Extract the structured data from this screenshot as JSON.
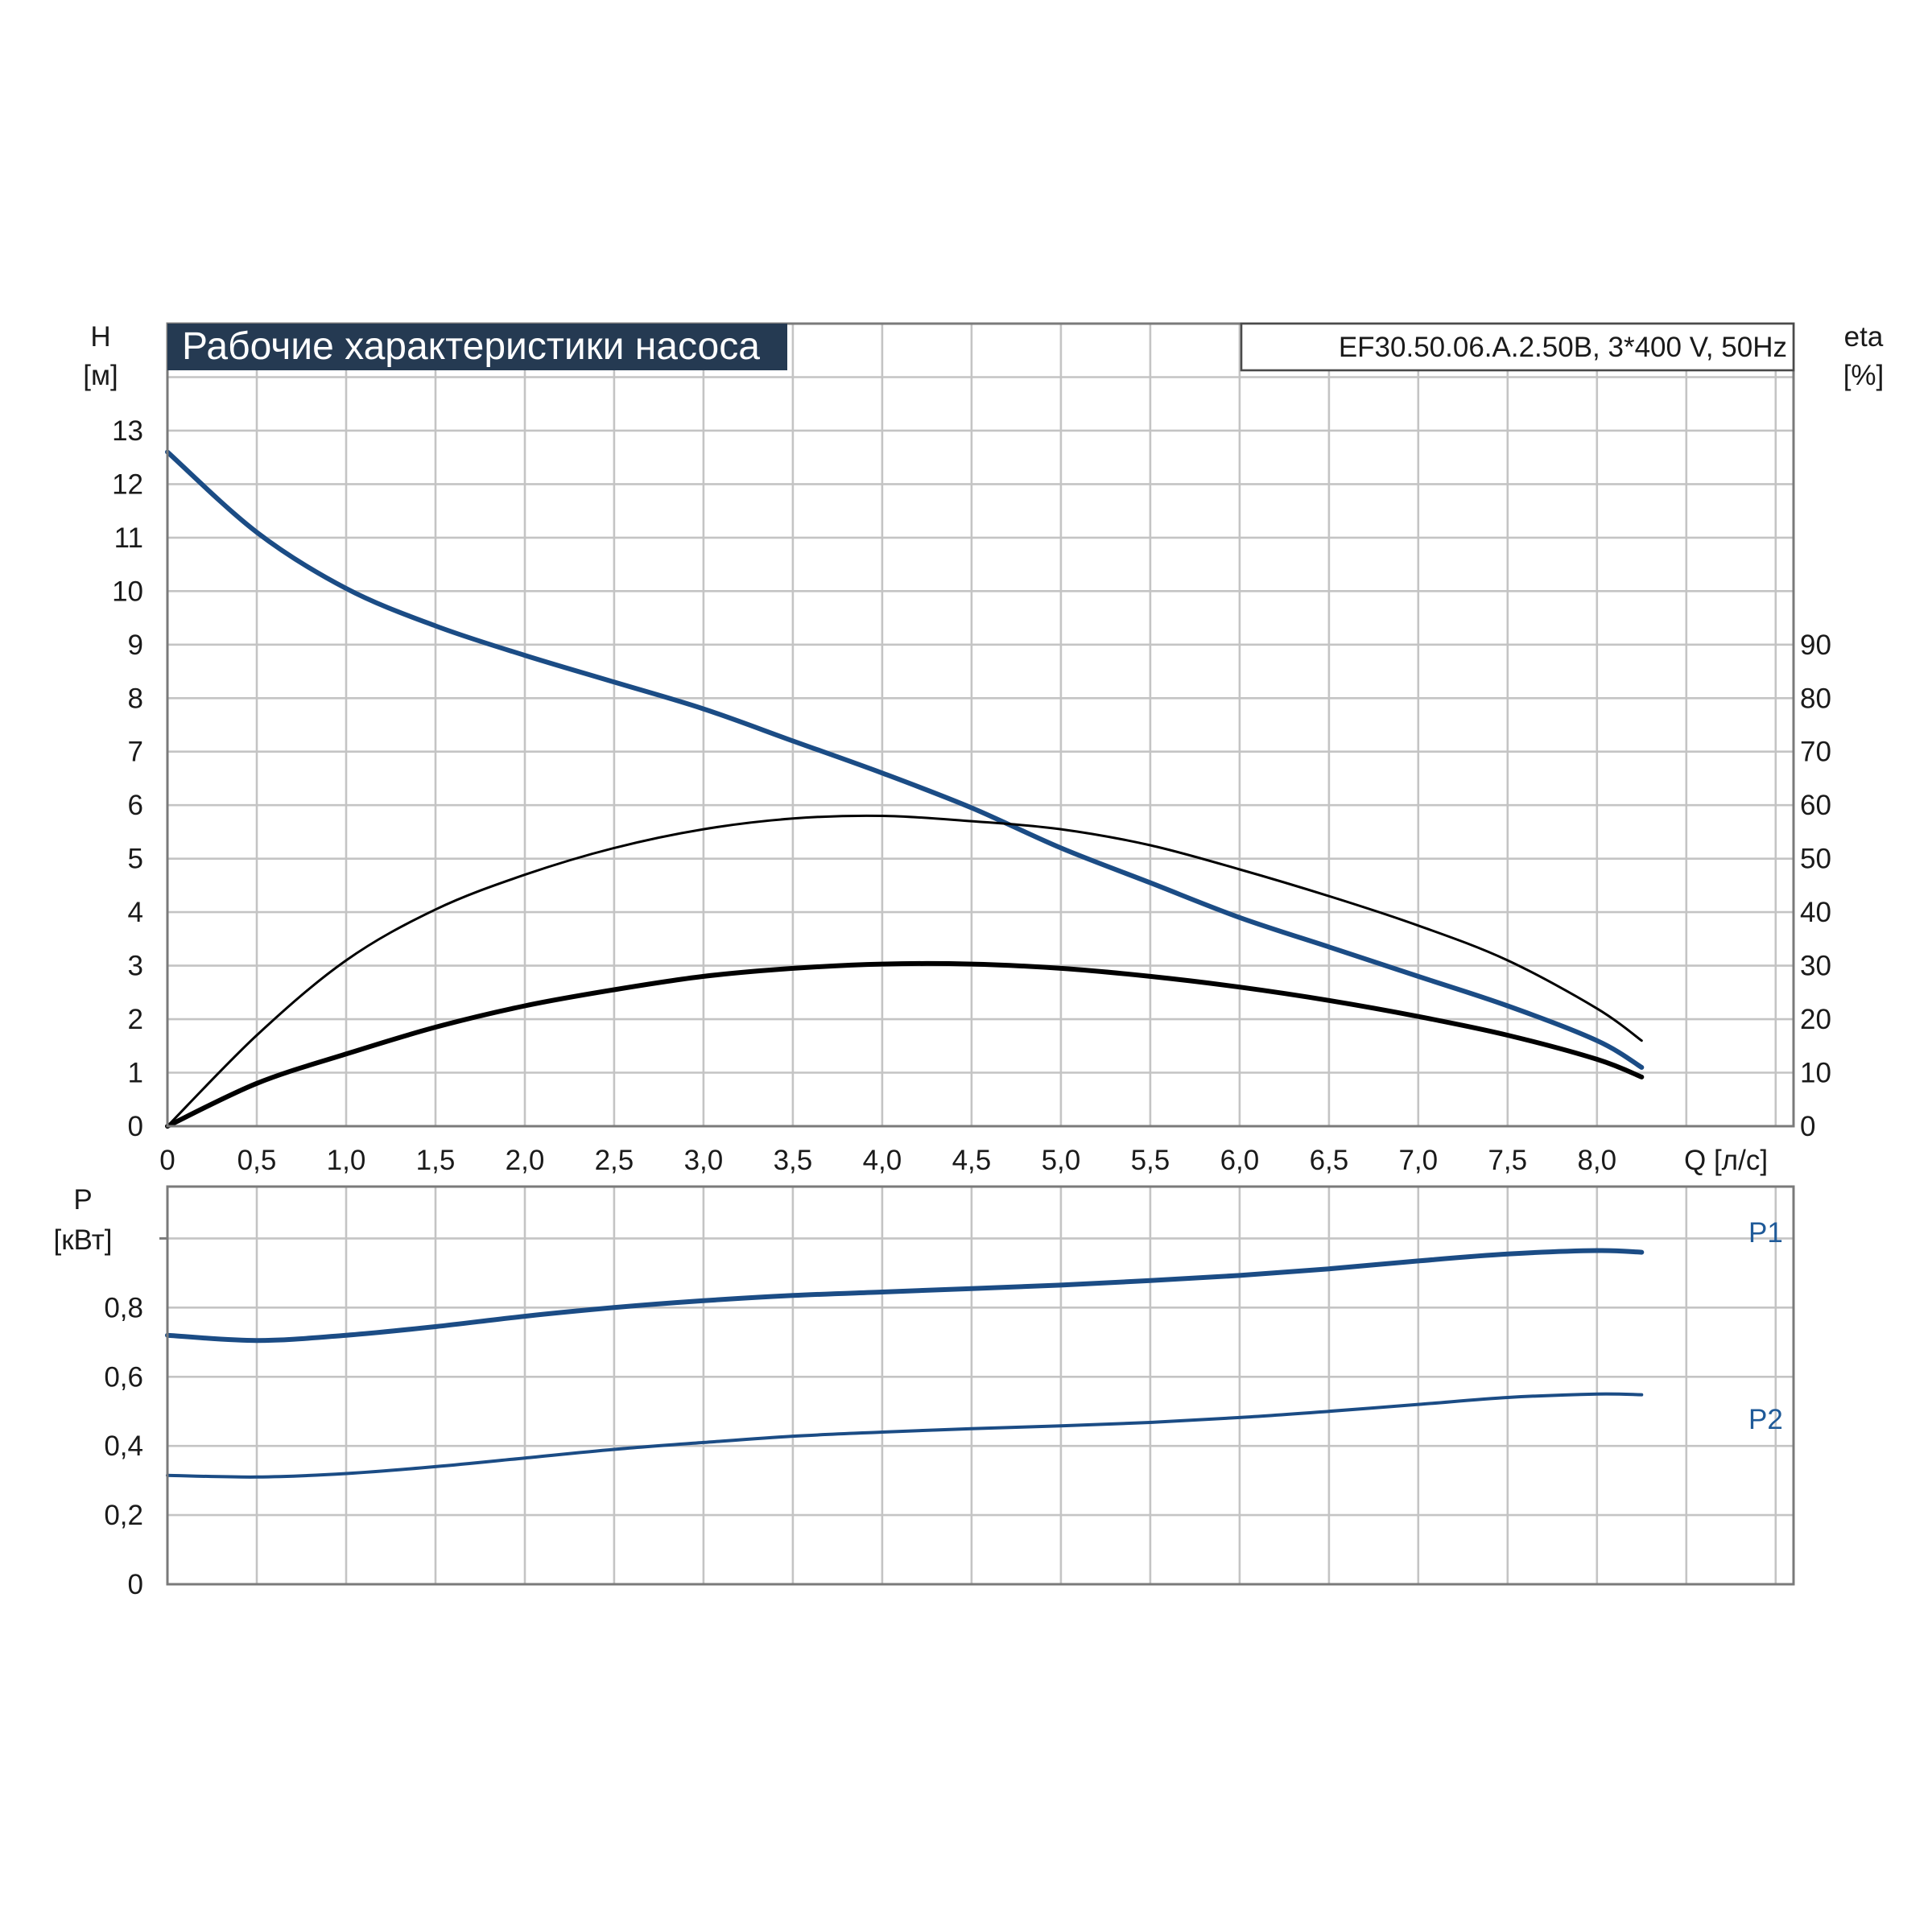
{
  "colors": {
    "blue": "#1b4c85",
    "black": "#000000",
    "title_bg": "#253a52",
    "series_label": "#1f5a98"
  },
  "header": {
    "title": "Рабочие характеристики насоса",
    "model": "EF30.50.06.A.2.50B, 3*400 V, 50Hz"
  },
  "axes": {
    "h_label": "H",
    "h_unit": "[м]",
    "eta_label": "eta",
    "eta_unit": "[%]",
    "q_label": "Q [л/с]",
    "p_label": "P",
    "p_unit": "[кВт]"
  },
  "chart_data": [
    {
      "type": "line",
      "title": "Рабочие характеристики насоса",
      "xlabel": "Q [л/с]",
      "ylabel": "H [м]",
      "y2label": "eta [%]",
      "xlim": [
        0,
        9.1
      ],
      "ylim": [
        0,
        15
      ],
      "y2lim": [
        0,
        150
      ],
      "grid": true,
      "x_ticks": [
        "0",
        "0,5",
        "1,0",
        "1,5",
        "2,0",
        "2,5",
        "3,0",
        "3,5",
        "4,0",
        "4,5",
        "5,0",
        "5,5",
        "6,0",
        "6,5",
        "7,0",
        "7,5",
        "8,0"
      ],
      "y_ticks": [
        "0",
        "1",
        "2",
        "3",
        "4",
        "5",
        "6",
        "7",
        "8",
        "9",
        "10",
        "11",
        "12",
        "13"
      ],
      "y2_ticks": [
        "0",
        "10",
        "20",
        "30",
        "40",
        "50",
        "60",
        "70",
        "80",
        "90"
      ],
      "series": [
        {
          "axis": "left",
          "color": "#1b4c85",
          "width": 6,
          "x": [
            0,
            0.5,
            1.0,
            1.5,
            2.0,
            2.5,
            3.0,
            3.5,
            4.0,
            4.5,
            5.0,
            5.5,
            6.0,
            6.5,
            7.0,
            7.5,
            8.0,
            8.25
          ],
          "y": [
            12.6,
            11.1,
            10.05,
            9.35,
            8.8,
            8.3,
            7.8,
            7.2,
            6.6,
            5.95,
            5.2,
            4.55,
            3.9,
            3.35,
            2.8,
            2.25,
            1.6,
            1.1
          ]
        },
        {
          "axis": "right",
          "color": "#000000",
          "width": 3,
          "x": [
            0,
            0.5,
            1.0,
            1.5,
            2.0,
            2.5,
            3.0,
            3.5,
            4.0,
            4.5,
            5.0,
            5.5,
            6.0,
            6.5,
            7.0,
            7.5,
            8.0,
            8.25
          ],
          "y": [
            0,
            17,
            31,
            40.5,
            47,
            52,
            55.5,
            57.5,
            58,
            57,
            55.5,
            52.5,
            48,
            43,
            37.5,
            31,
            22,
            16
          ]
        },
        {
          "axis": "right",
          "color": "#000000",
          "width": 6,
          "x": [
            0,
            0.5,
            1.0,
            1.5,
            2.0,
            2.5,
            3.0,
            3.5,
            4.0,
            4.5,
            5.0,
            5.5,
            6.0,
            6.5,
            7.0,
            7.5,
            8.0,
            8.25
          ],
          "y": [
            0,
            8,
            13.5,
            18.5,
            22.5,
            25.5,
            28,
            29.5,
            30.3,
            30.3,
            29.5,
            28,
            26,
            23.5,
            20.5,
            17,
            12.5,
            9.2
          ]
        }
      ]
    },
    {
      "type": "line",
      "xlabel": "Q [л/с]",
      "ylabel": "P [кВт]",
      "xlim": [
        0,
        9.1
      ],
      "ylim": [
        0,
        1.15
      ],
      "grid": true,
      "y_ticks": [
        "0",
        "0,2",
        "0,4",
        "0,6",
        "0,8"
      ],
      "series": [
        {
          "name": "P1",
          "color": "#1b4c85",
          "width": 6,
          "x": [
            0,
            0.5,
            1.0,
            1.5,
            2.0,
            2.5,
            3.0,
            3.5,
            4.0,
            4.5,
            5.0,
            5.5,
            6.0,
            6.5,
            7.0,
            7.5,
            8.0,
            8.25
          ],
          "y": [
            0.72,
            0.705,
            0.72,
            0.745,
            0.775,
            0.8,
            0.82,
            0.835,
            0.845,
            0.855,
            0.865,
            0.878,
            0.893,
            0.912,
            0.935,
            0.955,
            0.965,
            0.96
          ]
        },
        {
          "name": "P2",
          "color": "#1b4c85",
          "width": 4,
          "x": [
            0,
            0.5,
            1.0,
            1.5,
            2.0,
            2.5,
            3.0,
            3.5,
            4.0,
            4.5,
            5.0,
            5.5,
            6.0,
            6.5,
            7.0,
            7.5,
            8.0,
            8.25
          ],
          "y": [
            0.315,
            0.31,
            0.32,
            0.34,
            0.365,
            0.39,
            0.41,
            0.428,
            0.44,
            0.45,
            0.458,
            0.468,
            0.482,
            0.5,
            0.52,
            0.54,
            0.55,
            0.548
          ]
        }
      ]
    }
  ]
}
